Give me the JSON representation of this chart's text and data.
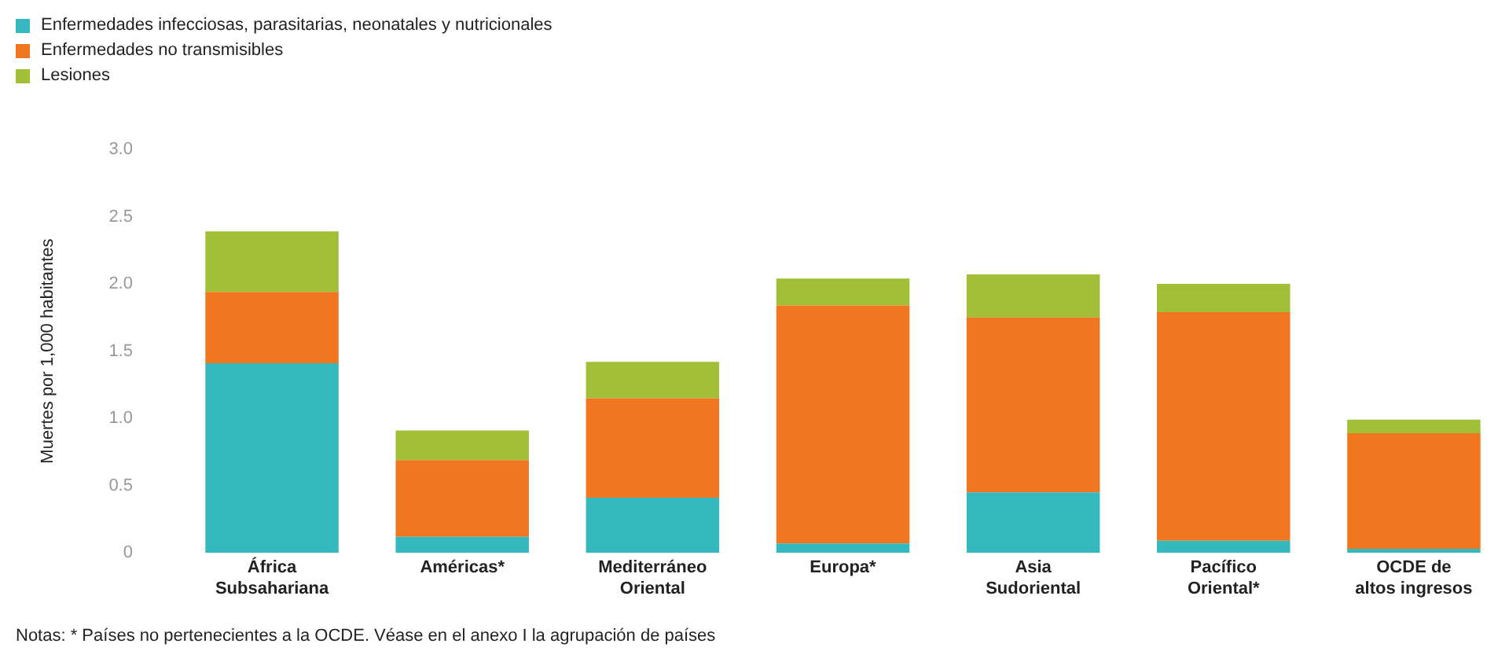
{
  "chart_data": {
    "type": "bar",
    "stacked": true,
    "ylabel": "Muertes por 1,000 habitantes",
    "categories": [
      "África\nSubsahariana",
      "Américas*",
      "Mediterráneo\nOriental",
      "Europa*",
      "Asia\nSudoriental",
      "Pacífico\nOriental*",
      "OCDE de\naltos ingresos"
    ],
    "series": [
      {
        "name": "Enfermedades infecciosas, parasitarias, neonatales y nutricionales",
        "color": "#35b9bf",
        "values": [
          1.41,
          0.12,
          0.41,
          0.07,
          0.45,
          0.09,
          0.03
        ]
      },
      {
        "name": "Enfermedades no transmisibles",
        "color": "#f07620",
        "values": [
          0.53,
          0.57,
          0.74,
          1.77,
          1.3,
          1.7,
          0.86
        ]
      },
      {
        "name": "Lesiones",
        "color": "#a2bf38",
        "values": [
          0.45,
          0.22,
          0.27,
          0.2,
          0.32,
          0.21,
          0.1
        ]
      }
    ],
    "ylim": [
      0,
      3
    ],
    "yticks": [
      {
        "value": 0,
        "label": "0"
      },
      {
        "value": 0.5,
        "label": "0.5"
      },
      {
        "value": 1,
        "label": "1.0"
      },
      {
        "value": 1.5,
        "label": "1.5"
      },
      {
        "value": 2,
        "label": "2.0"
      },
      {
        "value": 2.5,
        "label": "2.5"
      },
      {
        "value": 3,
        "label": "3.0"
      }
    ],
    "grid": false,
    "legend": "top left",
    "annotations": [
      "Notas: * Países no pertenecientes a la OCDE. Véase en el anexo I la agrupación de países"
    ]
  }
}
